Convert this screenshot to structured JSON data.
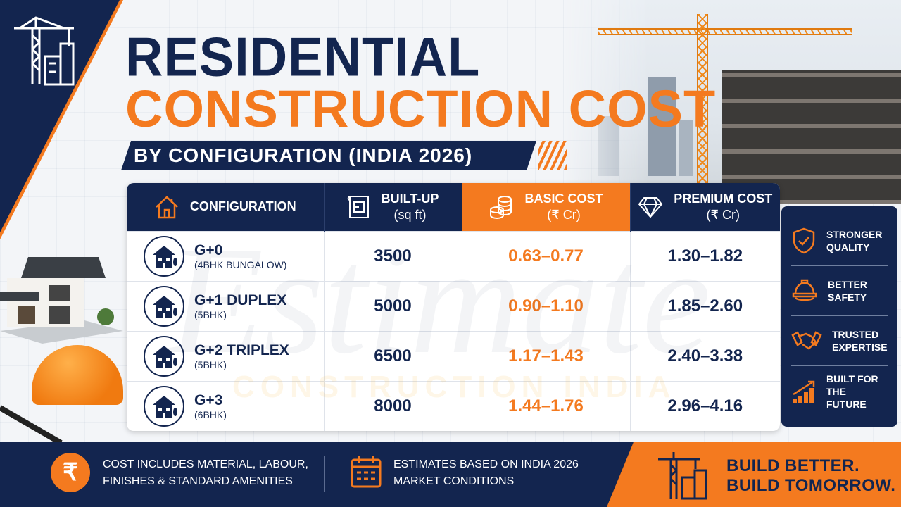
{
  "title": {
    "line1": "RESIDENTIAL",
    "line2": "CONSTRUCTION COST",
    "subtitle": "BY CONFIGURATION (INDIA 2026)"
  },
  "watermark": {
    "script": "Estimate",
    "caption": "CONSTRUCTION INDIA"
  },
  "colors": {
    "navy": "#13254f",
    "orange": "#f47a1f"
  },
  "table": {
    "headers": [
      {
        "icon": "house-icon",
        "label": "CONFIGURATION",
        "unit": ""
      },
      {
        "icon": "blueprint-icon",
        "label": "BUILT-UP",
        "unit": "(sq ft)"
      },
      {
        "icon": "coins-icon",
        "label": "BASIC COST",
        "unit": "(₹ Cr)"
      },
      {
        "icon": "diamond-icon",
        "label": "PREMIUM COST",
        "unit": "(₹ Cr)"
      }
    ],
    "rows": [
      {
        "name": "G+0",
        "type": "(4BHK BUNGALOW)",
        "builtup": "3500",
        "basic": "0.63–0.77",
        "premium": "1.30–1.82"
      },
      {
        "name": "G+1 DUPLEX",
        "type": "(5BHK)",
        "builtup": "5000",
        "basic": "0.90–1.10",
        "premium": "1.85–2.60"
      },
      {
        "name": "G+2 TRIPLEX",
        "type": "(5BHK)",
        "builtup": "6500",
        "basic": "1.17–1.43",
        "premium": "2.40–3.38"
      },
      {
        "name": "G+3",
        "type": "(6BHK)",
        "builtup": "8000",
        "basic": "1.44–1.76",
        "premium": "2.96–4.16"
      }
    ]
  },
  "features": [
    {
      "icon": "shield-check-icon",
      "line1": "STRONGER",
      "line2": "QUALITY"
    },
    {
      "icon": "hard-hat-icon",
      "line1": "BETTER",
      "line2": "SAFETY"
    },
    {
      "icon": "handshake-icon",
      "line1": "TRUSTED",
      "line2": "EXPERTISE"
    },
    {
      "icon": "growth-chart-icon",
      "line1": "BUILT FOR",
      "line2": "THE FUTURE"
    }
  ],
  "footer": {
    "rupee_symbol": "₹",
    "note1": {
      "line1": "COST INCLUDES MATERIAL, LABOUR,",
      "line2": "FINISHES & STANDARD AMENITIES"
    },
    "note2": {
      "line1": "ESTIMATES BASED ON INDIA 2026",
      "line2": "MARKET CONDITIONS"
    },
    "tagline": {
      "line1": "BUILD BETTER.",
      "line2": "BUILD TOMORROW."
    }
  }
}
